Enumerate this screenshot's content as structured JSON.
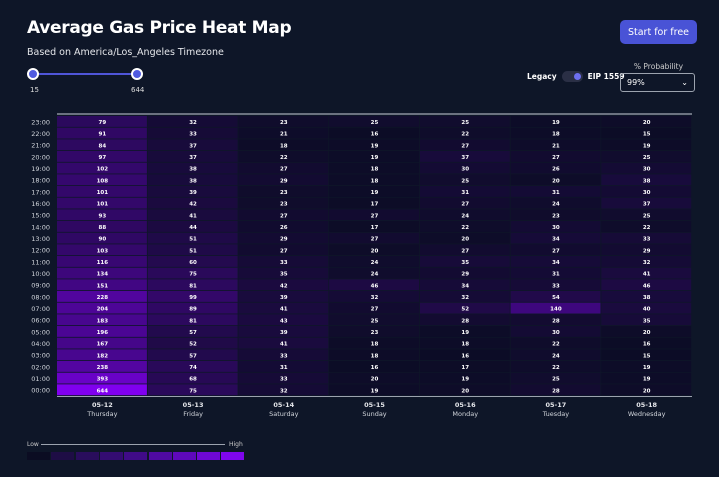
{
  "header": {
    "title": "Average Gas Price Heat Map",
    "subtitle": "Based on America/Los_Angeles Timezone",
    "cta_label": "Start for free"
  },
  "range_slider": {
    "min_label": "15",
    "max_label": "644",
    "min": 15,
    "max": 644
  },
  "toggle": {
    "left_label": "Legacy",
    "right_label": "EIP 1559",
    "selected": "EIP 1559"
  },
  "probability": {
    "label": "% Probability",
    "value": "99%",
    "icon": "chevron-down-icon"
  },
  "legend": {
    "low_label": "Low",
    "high_label": "High",
    "colors": [
      "#0b0c22",
      "#1e0d45",
      "#290d5c",
      "#340c72",
      "#400b88",
      "#4f0aa2",
      "#5e09bb",
      "#6e08d4",
      "#7f06ee"
    ]
  },
  "chart_data": {
    "type": "heatmap",
    "title": "Average Gas Price Heat Map",
    "y_categories": [
      "23:00",
      "22:00",
      "21:00",
      "20:00",
      "19:00",
      "18:00",
      "17:00",
      "16:00",
      "15:00",
      "14:00",
      "13:00",
      "12:00",
      "11:00",
      "10:00",
      "09:00",
      "08:00",
      "07:00",
      "06:00",
      "05:00",
      "04:00",
      "03:00",
      "02:00",
      "01:00",
      "00:00"
    ],
    "x_categories": [
      {
        "date": "05-12",
        "day": "Thursday"
      },
      {
        "date": "05-13",
        "day": "Friday"
      },
      {
        "date": "05-14",
        "day": "Saturday"
      },
      {
        "date": "05-15",
        "day": "Sunday"
      },
      {
        "date": "05-16",
        "day": "Monday"
      },
      {
        "date": "05-17",
        "day": "Tuesday"
      },
      {
        "date": "05-18",
        "day": "Wednesday"
      }
    ],
    "values": [
      [
        79,
        91,
        84,
        97,
        102,
        108,
        101,
        101,
        93,
        88,
        90,
        103,
        116,
        134,
        151,
        228,
        204,
        183,
        196,
        167,
        182,
        238,
        393,
        644
      ],
      [
        32,
        33,
        37,
        37,
        38,
        38,
        39,
        42,
        41,
        44,
        51,
        51,
        60,
        75,
        81,
        99,
        89,
        81,
        57,
        52,
        57,
        74,
        68,
        75
      ],
      [
        23,
        21,
        18,
        22,
        27,
        29,
        23,
        23,
        27,
        26,
        29,
        27,
        33,
        35,
        42,
        39,
        41,
        43,
        39,
        41,
        33,
        31,
        33,
        32
      ],
      [
        25,
        16,
        19,
        19,
        18,
        18,
        19,
        17,
        27,
        17,
        27,
        20,
        24,
        24,
        46,
        32,
        27,
        25,
        23,
        18,
        18,
        16,
        20,
        19
      ],
      [
        25,
        22,
        27,
        37,
        30,
        25,
        31,
        27,
        24,
        22,
        20,
        27,
        35,
        29,
        34,
        32,
        52,
        28,
        19,
        18,
        16,
        17,
        19,
        20
      ],
      [
        19,
        18,
        21,
        27,
        26,
        20,
        31,
        24,
        23,
        30,
        34,
        27,
        34,
        31,
        33,
        54,
        140,
        28,
        30,
        22,
        24,
        22,
        25,
        28
      ],
      [
        20,
        15,
        19,
        25,
        30,
        38,
        30,
        37,
        25,
        22,
        33,
        29,
        32,
        41,
        46,
        38,
        40,
        35,
        20,
        16,
        15,
        19,
        19,
        20
      ]
    ],
    "color_range": [
      15,
      644
    ],
    "low_color": "#0c0c26",
    "high_color": "#8000f0"
  }
}
